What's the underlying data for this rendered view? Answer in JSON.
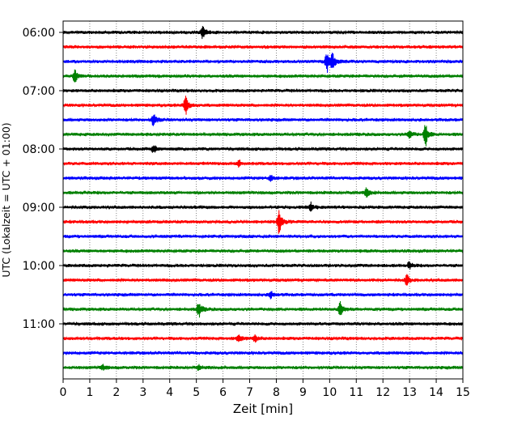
{
  "chart_data": {
    "type": "line",
    "title": "",
    "xlabel": "Zeit  [min]",
    "ylabel": "UTC (Lokalzeit = UTC + 01:00)",
    "xlim": [
      0,
      15
    ],
    "x_ticks": [
      "0",
      "1",
      "2",
      "3",
      "4",
      "5",
      "6",
      "7",
      "8",
      "9",
      "10",
      "11",
      "12",
      "13",
      "14",
      "15"
    ],
    "y_ticks": [
      "06:00",
      "07:00",
      "08:00",
      "09:00",
      "10:00",
      "11:00"
    ],
    "trace_interval_min": 15,
    "start_time": "06:00",
    "trace_count": 24,
    "grid": "vertical dotted at each minute",
    "colors": [
      "#000000",
      "#ff0000",
      "#0000ff",
      "#008000"
    ],
    "traces": [
      {
        "time": "06:00",
        "events": [
          {
            "t": 5.25,
            "amp": 0.55
          }
        ]
      },
      {
        "time": "06:15",
        "events": []
      },
      {
        "time": "06:30",
        "events": [
          {
            "t": 9.9,
            "amp": 0.9
          },
          {
            "t": 10.1,
            "amp": 0.8
          }
        ]
      },
      {
        "time": "06:45",
        "events": [
          {
            "t": 0.45,
            "amp": 0.6
          }
        ]
      },
      {
        "time": "07:00",
        "events": []
      },
      {
        "time": "07:15",
        "events": [
          {
            "t": 4.6,
            "amp": 0.9
          }
        ]
      },
      {
        "time": "07:30",
        "events": [
          {
            "t": 3.4,
            "amp": 0.55
          }
        ]
      },
      {
        "time": "07:45",
        "events": [
          {
            "t": 13.6,
            "amp": 0.95
          },
          {
            "t": 13.0,
            "amp": 0.35
          }
        ]
      },
      {
        "time": "08:00",
        "events": [
          {
            "t": 3.4,
            "amp": 0.35
          }
        ]
      },
      {
        "time": "08:15",
        "events": [
          {
            "t": 6.6,
            "amp": 0.3
          }
        ]
      },
      {
        "time": "08:30",
        "events": [
          {
            "t": 7.8,
            "amp": 0.25
          }
        ]
      },
      {
        "time": "08:45",
        "events": [
          {
            "t": 11.4,
            "amp": 0.45
          }
        ]
      },
      {
        "time": "09:00",
        "events": [
          {
            "t": 9.3,
            "amp": 0.35
          }
        ]
      },
      {
        "time": "09:15",
        "events": [
          {
            "t": 8.1,
            "amp": 1.0
          }
        ]
      },
      {
        "time": "09:30",
        "events": []
      },
      {
        "time": "09:45",
        "events": []
      },
      {
        "time": "10:00",
        "events": [
          {
            "t": 13.0,
            "amp": 0.3
          }
        ]
      },
      {
        "time": "10:15",
        "events": [
          {
            "t": 12.9,
            "amp": 0.45
          }
        ]
      },
      {
        "time": "10:30",
        "events": [
          {
            "t": 7.8,
            "amp": 0.3
          }
        ]
      },
      {
        "time": "10:45",
        "events": [
          {
            "t": 5.1,
            "amp": 0.7
          },
          {
            "t": 10.4,
            "amp": 0.7
          }
        ]
      },
      {
        "time": "11:00",
        "events": []
      },
      {
        "time": "11:15",
        "events": [
          {
            "t": 6.6,
            "amp": 0.35
          },
          {
            "t": 7.2,
            "amp": 0.3
          }
        ]
      },
      {
        "time": "11:30",
        "events": []
      },
      {
        "time": "11:45",
        "events": [
          {
            "t": 1.5,
            "amp": 0.25
          },
          {
            "t": 5.1,
            "amp": 0.25
          }
        ]
      }
    ]
  }
}
